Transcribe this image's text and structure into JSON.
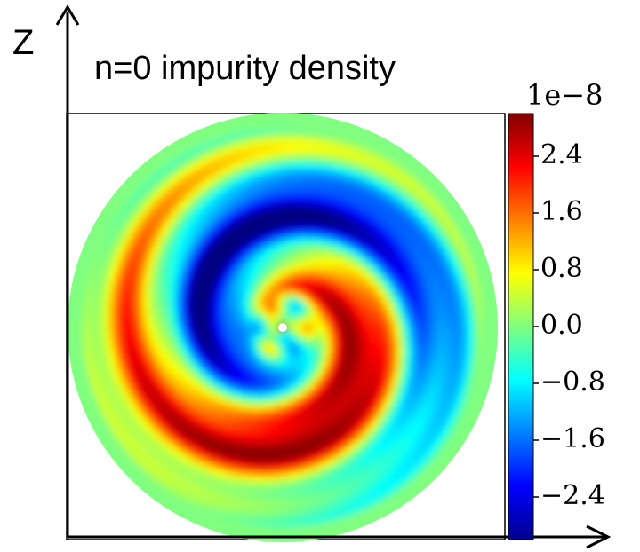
{
  "chart_data": {
    "type": "heatmap",
    "title": "n=0 impurity density",
    "ylabel": "Z",
    "xlabel": "",
    "colorbar": {
      "colormap": "jet",
      "exponent_label": "1e−8",
      "range": [
        -3.0,
        3.0
      ],
      "ticks": [
        2.4,
        1.6,
        0.8,
        0.0,
        -0.8,
        -1.6,
        -2.4
      ],
      "tick_labels": [
        "2.4",
        "1.6",
        "0.8",
        "0.0",
        "−0.8",
        "−1.6",
        "−2.4"
      ]
    },
    "field_description": "two-armed spiral pattern in a circular poloidal cross-section; positive (red) arm upper-left, negative (blue) arm lower-right, near-zero at edge and small structure at core",
    "grid": false,
    "axes_arrows": true
  }
}
